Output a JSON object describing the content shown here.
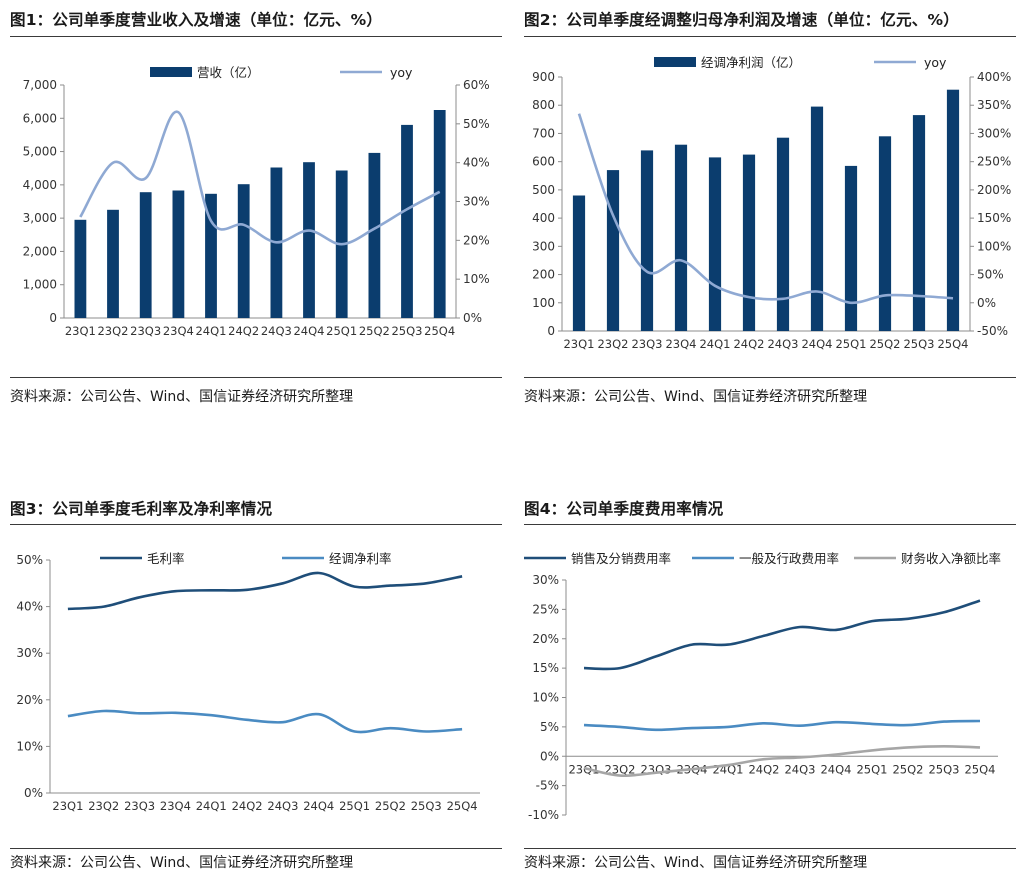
{
  "source_text": "资料来源：公司公告、Wind、国信证券经济研究所整理",
  "colors": {
    "bar": "#0b3d6e",
    "line_light": "#8fa9d3",
    "line_dark": "#1f4e79",
    "line_mid": "#4a8bc2",
    "line_gray": "#a6a6a6"
  },
  "chart_data": [
    {
      "id": "fig1",
      "type": "bar",
      "title": "图1：公司单季度营业收入及增速（单位：亿元、%）",
      "categories": [
        "23Q1",
        "23Q2",
        "23Q3",
        "23Q4",
        "24Q1",
        "24Q2",
        "24Q3",
        "24Q4",
        "25Q1",
        "25Q2",
        "25Q3",
        "25Q4"
      ],
      "series": [
        {
          "name": "营收（亿）",
          "type": "bar",
          "axis": "left",
          "values": [
            2950,
            3250,
            3780,
            3830,
            3730,
            4020,
            4520,
            4680,
            4430,
            4960,
            5800,
            6250
          ]
        },
        {
          "name": "yoy",
          "type": "line",
          "axis": "right",
          "values": [
            26,
            40,
            36,
            53,
            25,
            24,
            19.5,
            22.5,
            19,
            23,
            28,
            32.5
          ]
        }
      ],
      "y_left": {
        "min": 0,
        "max": 7000,
        "step": 1000,
        "tick_labels": [
          "0",
          "1,000",
          "2,000",
          "3,000",
          "4,000",
          "5,000",
          "6,000",
          "7,000"
        ]
      },
      "y_right": {
        "min": 0,
        "max": 60,
        "step": 10,
        "tick_labels": [
          "0%",
          "10%",
          "20%",
          "30%",
          "40%",
          "50%",
          "60%"
        ]
      },
      "legend": "top"
    },
    {
      "id": "fig2",
      "type": "bar",
      "title": "图2：公司单季度经调整归母净利润及增速（单位：亿元、%）",
      "categories": [
        "23Q1",
        "23Q2",
        "23Q3",
        "23Q4",
        "24Q1",
        "24Q2",
        "24Q3",
        "24Q4",
        "25Q1",
        "25Q2",
        "25Q3",
        "25Q4"
      ],
      "series": [
        {
          "name": "经调净利润（亿）",
          "type": "bar",
          "axis": "left",
          "values": [
            480,
            570,
            640,
            660,
            615,
            625,
            685,
            795,
            585,
            690,
            765,
            855
          ]
        },
        {
          "name": "yoy",
          "type": "line",
          "axis": "right",
          "values": [
            335,
            155,
            55,
            75,
            30,
            10,
            7,
            20,
            0,
            13,
            12,
            8
          ]
        }
      ],
      "y_left": {
        "min": 0,
        "max": 900,
        "step": 100,
        "tick_labels": [
          "0",
          "100",
          "200",
          "300",
          "400",
          "500",
          "600",
          "700",
          "800",
          "900"
        ]
      },
      "y_right": {
        "min": -50,
        "max": 400,
        "step": 50,
        "tick_labels": [
          "-50%",
          "0%",
          "50%",
          "100%",
          "150%",
          "200%",
          "250%",
          "300%",
          "350%",
          "400%"
        ]
      },
      "legend": "top"
    },
    {
      "id": "fig3",
      "type": "line",
      "title": "图3：公司单季度毛利率及净利率情况",
      "categories": [
        "23Q1",
        "23Q2",
        "23Q3",
        "23Q4",
        "24Q1",
        "24Q2",
        "24Q3",
        "24Q4",
        "25Q1",
        "25Q2",
        "25Q3",
        "25Q4"
      ],
      "series": [
        {
          "name": "毛利率",
          "values": [
            39.5,
            40,
            42,
            43.3,
            43.5,
            43.6,
            45,
            47.2,
            44.3,
            44.5,
            45,
            46.5
          ]
        },
        {
          "name": "经调净利率",
          "values": [
            16.5,
            17.6,
            17.1,
            17.2,
            16.7,
            15.7,
            15.2,
            16.9,
            13.2,
            13.9,
            13.2,
            13.7
          ]
        }
      ],
      "y": {
        "min": 0,
        "max": 50,
        "step": 10,
        "tick_labels": [
          "0%",
          "10%",
          "20%",
          "30%",
          "40%",
          "50%"
        ]
      },
      "legend": "top"
    },
    {
      "id": "fig4",
      "type": "line",
      "title": "图4：公司单季度费用率情况",
      "categories": [
        "23Q1",
        "23Q2",
        "23Q3",
        "23Q4",
        "24Q1",
        "24Q2",
        "24Q3",
        "24Q4",
        "25Q1",
        "25Q2",
        "25Q3",
        "25Q4"
      ],
      "series": [
        {
          "name": "销售及分销费用率",
          "values": [
            15,
            15,
            17,
            19,
            19,
            20.5,
            22,
            21.5,
            23,
            23.4,
            24.5,
            26.5
          ]
        },
        {
          "name": "一般及行政费用率",
          "values": [
            5.3,
            5,
            4.5,
            4.8,
            5,
            5.6,
            5.2,
            5.8,
            5.5,
            5.3,
            5.9,
            6
          ]
        },
        {
          "name": "财务收入净额比率",
          "values": [
            -2,
            -3.3,
            -2.8,
            -2.2,
            -1.5,
            -0.5,
            -0.2,
            0.3,
            1,
            1.5,
            1.7,
            1.5
          ]
        }
      ],
      "y": {
        "min": -10,
        "max": 30,
        "step": 5,
        "tick_labels": [
          "-10%",
          "-5%",
          "0%",
          "5%",
          "10%",
          "15%",
          "20%",
          "25%",
          "30%"
        ]
      },
      "legend": "top"
    }
  ]
}
